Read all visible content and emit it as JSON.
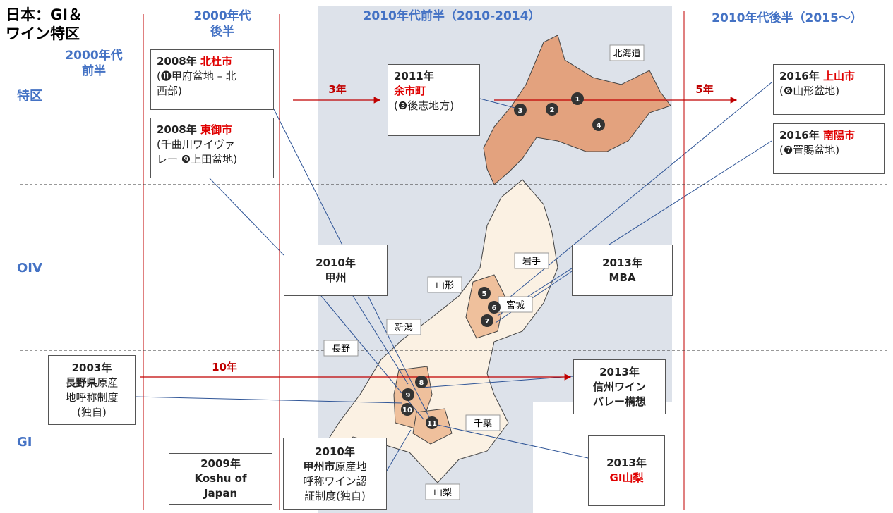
{
  "title": [
    "日本：GI＆",
    "ワイン特区"
  ],
  "columns": [
    [
      "2000年代",
      "前半"
    ],
    [
      "2000年代",
      "後半"
    ],
    [
      "2010年代前半（2010-2014）"
    ],
    [
      "2010年代後半（2015〜）"
    ]
  ],
  "rows": [
    "特区",
    "OIV",
    "GI"
  ],
  "arrows": [
    "3年",
    "5年",
    "10年"
  ],
  "boxes": [
    {
      "lines": [
        [
          {
            "t": "2008年 "
          },
          {
            "t": "北杜市",
            "red": true
          }
        ],
        [
          {
            "t": "(⓫甲府盆地 – 北"
          }
        ],
        [
          {
            "t": "西部)"
          }
        ]
      ]
    },
    {
      "lines": [
        [
          {
            "t": "2008年 "
          },
          {
            "t": "東御市",
            "red": true
          }
        ],
        [
          {
            "t": "(千曲川ワイヴァ"
          }
        ],
        [
          {
            "t": "レー ❾上田盆地)"
          }
        ]
      ]
    },
    {
      "lines": [
        [
          {
            "t": "2011年"
          }
        ],
        [
          {
            "t": "余市町",
            "red": true
          }
        ],
        [
          {
            "t": "(❸後志地方)"
          }
        ]
      ]
    },
    {
      "lines": [
        [
          {
            "t": "2016年 "
          },
          {
            "t": "上山市",
            "red": true
          }
        ],
        [
          {
            "t": "(❻山形盆地)"
          }
        ]
      ]
    },
    {
      "lines": [
        [
          {
            "t": "2016年 "
          },
          {
            "t": "南陽市",
            "red": true
          }
        ],
        [
          {
            "t": "(❼置賜盆地)"
          }
        ]
      ]
    },
    {
      "lines": [
        [
          {
            "t": "2010年"
          }
        ],
        [
          {
            "t": "甲州"
          }
        ]
      ]
    },
    {
      "lines": [
        [
          {
            "t": "2013年"
          }
        ],
        [
          {
            "t": "MBA"
          }
        ]
      ]
    },
    {
      "lines": [
        [
          {
            "t": "2003年"
          }
        ],
        [
          {
            "t": "長野県"
          },
          {
            "t": "原産",
            "plain": true
          }
        ],
        [
          {
            "t": "地呼称制度",
            "plain": true
          }
        ],
        [
          {
            "t": "(独自)",
            "plain": true
          }
        ]
      ]
    },
    {
      "lines": [
        [
          {
            "t": "2013年"
          }
        ],
        [
          {
            "t": "信州ワイン"
          }
        ],
        [
          {
            "t": "バレー構想"
          }
        ]
      ]
    },
    {
      "lines": [
        [
          {
            "t": "2013年"
          }
        ],
        [
          {
            "t": "GI山梨",
            "red": true
          }
        ]
      ]
    },
    {
      "lines": [
        [
          {
            "t": "2009年"
          }
        ],
        [
          {
            "t": "Koshu of"
          }
        ],
        [
          {
            "t": "Japan"
          }
        ]
      ]
    },
    {
      "lines": [
        [
          {
            "t": "2010年"
          }
        ],
        [
          {
            "t": "甲州市"
          },
          {
            "t": "原産地",
            "plain": true
          }
        ],
        [
          {
            "t": "呼称ワイン認",
            "plain": true
          }
        ],
        [
          {
            "t": "証制度(独自)",
            "plain": true
          }
        ]
      ]
    }
  ],
  "map": {
    "regions": [
      "北海道",
      "岩手",
      "山形",
      "宮城",
      "新潟",
      "長野",
      "千葉",
      "山梨"
    ],
    "markers": [
      "1",
      "2",
      "3",
      "4",
      "5",
      "6",
      "7",
      "8",
      "9",
      "10",
      "11"
    ]
  }
}
